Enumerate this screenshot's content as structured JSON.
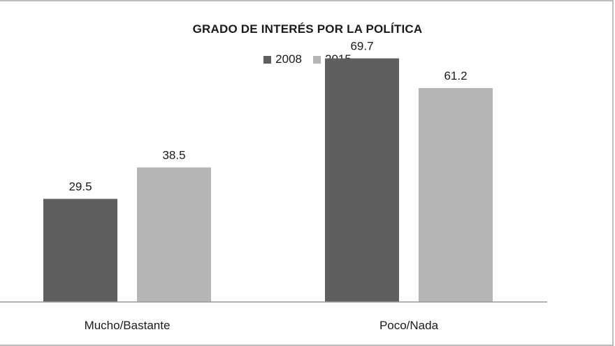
{
  "chart_data": {
    "type": "bar",
    "title": "GRADO DE INTERÉS POR LA POLÍTICA",
    "categories": [
      "Mucho/Bastante",
      "Poco/Nada"
    ],
    "series": [
      {
        "name": "2008",
        "values": [
          29.5,
          69.7
        ],
        "color": "#5f5f5f"
      },
      {
        "name": "2015",
        "values": [
          38.5,
          61.2
        ],
        "color": "#b5b5b5"
      }
    ],
    "ylim": [
      0,
      80
    ],
    "grid": false,
    "legend_position": "top-center",
    "data_labels": true,
    "xlabel": "",
    "ylabel": ""
  }
}
